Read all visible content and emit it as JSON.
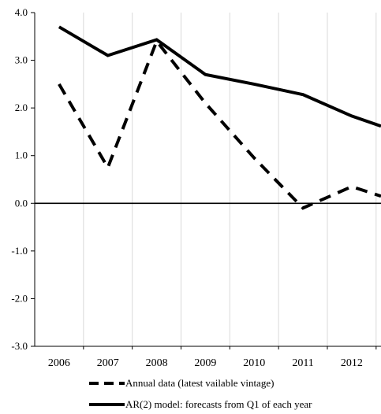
{
  "chart_data": {
    "type": "line",
    "title": "",
    "xlabel": "",
    "ylabel": "",
    "x": [
      2006,
      2007,
      2008,
      2009,
      2010,
      2011,
      2012
    ],
    "x_tick_labels": [
      "2006",
      "2007",
      "2008",
      "2009",
      "2010",
      "2011",
      "2012"
    ],
    "xlim": [
      2005.5,
      2012.6
    ],
    "ylim": [
      -3.0,
      4.0
    ],
    "y_ticks": [
      4.0,
      3.0,
      2.0,
      1.0,
      0.0,
      -1.0,
      -2.0,
      -3.0
    ],
    "y_tick_labels": [
      "4.0",
      "3.0",
      "2.0",
      "1.0",
      "0.0",
      "-1.0",
      "-2.0",
      "-3.0"
    ],
    "grid": "vertical",
    "legend_position": "bottom",
    "series": [
      {
        "name": "Annual data (latest vailable vintage)",
        "style": "dashed",
        "color": "#000000",
        "points": [
          [
            2006,
            2.5
          ],
          [
            2007,
            0.75
          ],
          [
            2008,
            3.4
          ],
          [
            2009,
            2.1
          ],
          [
            2010,
            0.95
          ],
          [
            2011,
            -0.1
          ],
          [
            2012,
            0.35
          ],
          [
            2012.6,
            0.15
          ]
        ]
      },
      {
        "name": "AR(2) model: forecasts from Q1 of each year",
        "style": "solid",
        "color": "#000000",
        "points": [
          [
            2006,
            3.7
          ],
          [
            2007,
            3.1
          ],
          [
            2008,
            3.43
          ],
          [
            2009,
            2.7
          ],
          [
            2010,
            2.5
          ],
          [
            2011,
            2.28
          ],
          [
            2012,
            1.83
          ],
          [
            2012.6,
            1.62
          ]
        ]
      }
    ]
  }
}
